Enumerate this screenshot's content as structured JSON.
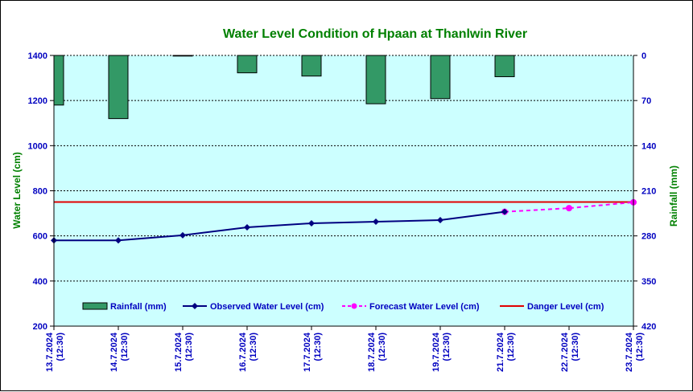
{
  "chart_data": {
    "type": "bar+line",
    "title": "Water Level Condition of Hpaan at Thanlwin River",
    "ylabel_left": "Water Level (cm)",
    "ylabel_right": "Rainfall (mm)",
    "ylim_left": [
      200,
      1400
    ],
    "yticks_left": [
      "200",
      "400",
      "600",
      "800",
      "1000",
      "1200",
      "1400"
    ],
    "ylim_right_inverted": [
      0,
      420
    ],
    "yticks_right": [
      "0",
      "70",
      "140",
      "210",
      "280",
      "350",
      "420"
    ],
    "categories": [
      [
        "13.7.2024",
        "(12:30)"
      ],
      [
        "14.7.2024",
        "(12:30)"
      ],
      [
        "15.7.2024",
        "(12:30)"
      ],
      [
        "16.7.2024",
        "(12:30)"
      ],
      [
        "17.7.2024",
        "(12:30)"
      ],
      [
        "18.7.2024",
        "(12:30)"
      ],
      [
        "19.7.2024",
        "(12:30)"
      ],
      [
        "21.7.2024",
        "(12:30)"
      ],
      [
        "22.7.2024",
        "(12:30)"
      ],
      [
        "23.7.2024",
        "(12:30)"
      ]
    ],
    "series": [
      {
        "name": "Rainfall (mm)",
        "kind": "bar",
        "axis": "right",
        "color": "#339966",
        "values": [
          77,
          98,
          1,
          27,
          32,
          75,
          67,
          33,
          null,
          null
        ]
      },
      {
        "name": "Observed Water Level (cm)",
        "kind": "line",
        "axis": "left",
        "color": "#000080",
        "values": [
          580,
          580,
          603,
          638,
          656,
          663,
          670,
          707,
          null,
          null
        ]
      },
      {
        "name": "Forecast Water Level (cm)",
        "kind": "dashed-line",
        "axis": "left",
        "color": "#ff00ff",
        "values": [
          null,
          null,
          null,
          null,
          null,
          null,
          null,
          707,
          723,
          749
        ]
      },
      {
        "name": "Danger Level (cm)",
        "kind": "hline",
        "axis": "left",
        "color": "#e00000",
        "value": 750
      }
    ],
    "grid": "horizontal dashed",
    "legend_position": "bottom-inside",
    "plot_background": "#ccffff"
  }
}
